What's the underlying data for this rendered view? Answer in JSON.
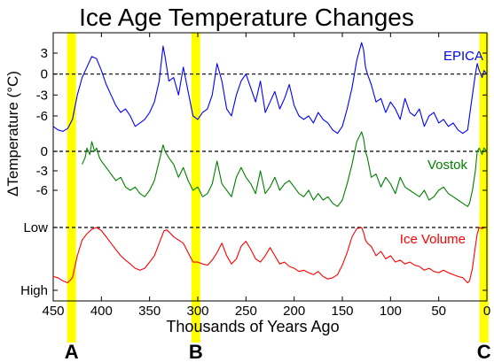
{
  "chart_data": {
    "type": "line",
    "title": "Ice Age Temperature Changes",
    "xlabel": "Thousands of Years Ago",
    "ylabel": "ΔTemperature (°C)",
    "xlim": [
      450,
      0
    ],
    "x_ticks": [
      450,
      400,
      350,
      300,
      250,
      200,
      150,
      100,
      50,
      0
    ],
    "grid": false,
    "series": [
      {
        "name": "EPICA",
        "color": "#0000ff",
        "y_ticks": [
          "3",
          "0",
          "-3",
          "-6"
        ],
        "reference_line_label": "0",
        "x": [
          450,
          445,
          440,
          435,
          430,
          425,
          420,
          415,
          410,
          405,
          400,
          395,
          390,
          385,
          380,
          375,
          370,
          365,
          360,
          355,
          350,
          345,
          340,
          336,
          334,
          330,
          325,
          320,
          315,
          310,
          305,
          300,
          295,
          290,
          285,
          280,
          275,
          270,
          265,
          260,
          255,
          250,
          245,
          240,
          235,
          230,
          225,
          220,
          215,
          210,
          205,
          200,
          195,
          190,
          185,
          180,
          175,
          170,
          165,
          160,
          155,
          150,
          145,
          140,
          135,
          130,
          128,
          126,
          124,
          120,
          115,
          110,
          105,
          100,
          95,
          90,
          85,
          80,
          75,
          70,
          65,
          60,
          55,
          50,
          45,
          40,
          35,
          30,
          25,
          20,
          18,
          15,
          12,
          10,
          8,
          5,
          3,
          0
        ],
        "y": [
          -7.5,
          -8,
          -8.2,
          -7.8,
          -6.5,
          -3,
          -0.5,
          1,
          2.5,
          2.2,
          0.5,
          -1.5,
          -3,
          -4.5,
          -5.5,
          -5,
          -6,
          -7.5,
          -7,
          -6.5,
          -5.5,
          -4,
          -1,
          4,
          2.5,
          -1,
          -0.5,
          -3,
          1,
          -2.5,
          -6,
          -6.5,
          -5.5,
          -5,
          -3,
          1.5,
          -1,
          -5,
          -6,
          -3,
          -1,
          0,
          -2,
          -4,
          -1,
          -5.5,
          -4,
          -2.5,
          -5,
          -3.5,
          -1.5,
          -4.5,
          -6,
          -6.5,
          -6,
          -7,
          -5.5,
          -6.5,
          -7,
          -8,
          -8.5,
          -7.5,
          -5,
          -2,
          2,
          4.5,
          3.5,
          1,
          0,
          -1.5,
          -4,
          -3.5,
          -5.5,
          -4,
          -5,
          -6.5,
          -3.5,
          -5.5,
          -6,
          -5,
          -7.5,
          -6,
          -5.5,
          -7,
          -6.5,
          -7.5,
          -7,
          -8,
          -8.5,
          -8,
          -6,
          -3,
          0,
          1.5,
          0.5,
          -0.5,
          0.5,
          0
        ]
      },
      {
        "name": "Vostok",
        "color": "#008000",
        "y_ticks": [
          "0",
          "-3",
          "-6"
        ],
        "reference_line_label": "0",
        "x": [
          420,
          417,
          415,
          412,
          410,
          407,
          405,
          402,
          400,
          395,
          390,
          385,
          380,
          375,
          370,
          365,
          360,
          355,
          350,
          345,
          340,
          336,
          334,
          330,
          325,
          320,
          315,
          310,
          305,
          300,
          295,
          290,
          285,
          280,
          275,
          270,
          265,
          260,
          255,
          250,
          245,
          240,
          235,
          230,
          225,
          220,
          215,
          210,
          205,
          200,
          195,
          190,
          185,
          180,
          175,
          170,
          165,
          160,
          155,
          150,
          145,
          140,
          135,
          130,
          128,
          126,
          124,
          120,
          115,
          110,
          105,
          100,
          95,
          90,
          85,
          80,
          75,
          70,
          65,
          60,
          55,
          50,
          45,
          40,
          35,
          30,
          25,
          20,
          18,
          15,
          12,
          10,
          8,
          5,
          3,
          0
        ],
        "y": [
          -2,
          -1,
          0.5,
          -0.5,
          1.5,
          0,
          0.5,
          -1,
          -1.5,
          -2.5,
          -3.5,
          -4.5,
          -4,
          -5.5,
          -6,
          -5.5,
          -6.5,
          -7,
          -6,
          -4.5,
          -1.5,
          1,
          0,
          -1,
          -2,
          -4,
          -2.5,
          -4.5,
          -6,
          -5.5,
          -7,
          -6.5,
          -5,
          -1.5,
          -5,
          -6,
          -7,
          -4,
          -2.5,
          -4,
          -5,
          -6.5,
          -3,
          -6.5,
          -5.5,
          -4,
          -6,
          -5,
          -4.5,
          -5.5,
          -6.5,
          -7,
          -6,
          -7.5,
          -6.5,
          -7.5,
          -7,
          -8,
          -8.5,
          -7.5,
          -5,
          -2,
          1.5,
          3,
          2,
          0,
          -1,
          -4,
          -3.5,
          -5.5,
          -4,
          -5,
          -6.5,
          -4,
          -5.5,
          -6,
          -6.5,
          -7,
          -6,
          -7.5,
          -7,
          -6,
          -5.5,
          -6.5,
          -7,
          -7.5,
          -8,
          -8.5,
          -8,
          -6,
          -3,
          0,
          0.5,
          -0.5,
          0.5,
          0
        ]
      },
      {
        "name": "Ice Volume",
        "color": "#ff0000",
        "y_ticks": [
          "Low",
          "High"
        ],
        "reference_line_label": "Low",
        "y_range": [
          0,
          1
        ],
        "x": [
          450,
          445,
          440,
          435,
          430,
          425,
          420,
          415,
          410,
          405,
          400,
          395,
          390,
          385,
          380,
          375,
          370,
          365,
          360,
          355,
          350,
          345,
          340,
          335,
          332,
          328,
          325,
          320,
          315,
          310,
          305,
          300,
          295,
          290,
          285,
          280,
          275,
          270,
          265,
          260,
          255,
          250,
          245,
          240,
          235,
          230,
          225,
          220,
          215,
          210,
          205,
          200,
          195,
          190,
          185,
          180,
          175,
          170,
          165,
          160,
          155,
          150,
          145,
          140,
          135,
          130,
          128,
          126,
          124,
          120,
          115,
          110,
          105,
          100,
          95,
          90,
          85,
          80,
          75,
          70,
          65,
          60,
          55,
          50,
          45,
          40,
          35,
          30,
          25,
          20,
          18,
          15,
          12,
          10,
          8,
          5,
          3,
          0
        ],
        "y": [
          0.22,
          0.2,
          0.15,
          0.12,
          0.2,
          0.55,
          0.8,
          0.9,
          0.97,
          1.0,
          0.95,
          0.85,
          0.75,
          0.65,
          0.55,
          0.48,
          0.42,
          0.35,
          0.32,
          0.35,
          0.45,
          0.55,
          0.75,
          0.95,
          0.96,
          0.9,
          0.85,
          0.8,
          0.75,
          0.6,
          0.45,
          0.45,
          0.42,
          0.4,
          0.48,
          0.6,
          0.75,
          0.55,
          0.42,
          0.5,
          0.7,
          0.78,
          0.65,
          0.5,
          0.45,
          0.55,
          0.68,
          0.55,
          0.42,
          0.45,
          0.38,
          0.35,
          0.3,
          0.32,
          0.28,
          0.25,
          0.3,
          0.22,
          0.18,
          0.2,
          0.25,
          0.4,
          0.6,
          0.85,
          0.98,
          1.0,
          0.92,
          0.8,
          0.75,
          0.7,
          0.55,
          0.62,
          0.5,
          0.55,
          0.45,
          0.48,
          0.42,
          0.45,
          0.4,
          0.38,
          0.32,
          0.35,
          0.3,
          0.28,
          0.32,
          0.28,
          0.25,
          0.22,
          0.2,
          0.12,
          0.15,
          0.35,
          0.7,
          0.9,
          1.0,
          0.98,
          1.0,
          1.0
        ]
      }
    ],
    "highlight_bands": [
      {
        "label": "A",
        "x_center": 431,
        "width": 10,
        "color": "#ffff00"
      },
      {
        "label": "B",
        "x_center": 302,
        "width": 10,
        "color": "#ffff00"
      },
      {
        "label": "C",
        "x_center": 3,
        "width": 10,
        "color": "#ffff00"
      }
    ]
  }
}
